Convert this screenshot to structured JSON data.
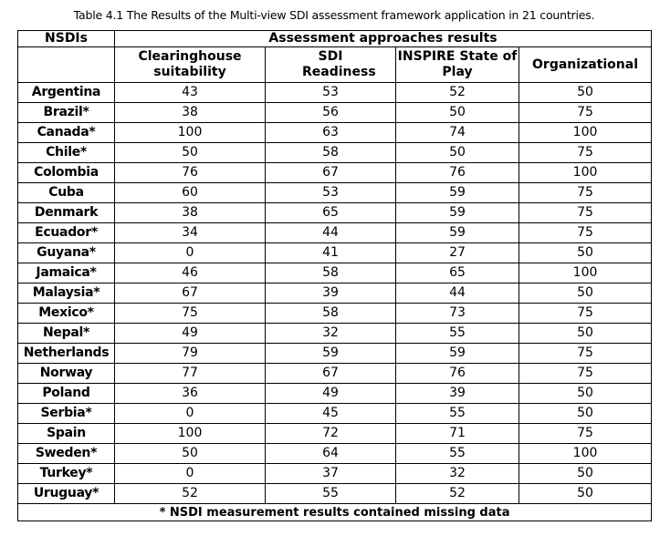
{
  "caption": "Table 4.1 The Results of the Multi-view SDI assessment framework application in 21 countries.",
  "table": {
    "row_header": "NSDIs",
    "group_header": "Assessment approaches results",
    "columns": [
      "Clearinghouse suitability",
      "SDI Readiness",
      "INSPIRE State of Play",
      "Organizational"
    ],
    "rows": [
      {
        "name": "Argentina",
        "values": [
          "43",
          "53",
          "52",
          "50"
        ]
      },
      {
        "name": "Brazil*",
        "values": [
          "38",
          "56",
          "50",
          "75"
        ]
      },
      {
        "name": "Canada*",
        "values": [
          "100",
          "63",
          "74",
          "100"
        ]
      },
      {
        "name": "Chile*",
        "values": [
          "50",
          "58",
          "50",
          "75"
        ]
      },
      {
        "name": "Colombia",
        "values": [
          "76",
          "67",
          "76",
          "100"
        ]
      },
      {
        "name": "Cuba",
        "values": [
          "60",
          "53",
          "59",
          "75"
        ]
      },
      {
        "name": "Denmark",
        "values": [
          "38",
          "65",
          "59",
          "75"
        ]
      },
      {
        "name": "Ecuador*",
        "values": [
          "34",
          "44",
          "59",
          "75"
        ]
      },
      {
        "name": "Guyana*",
        "values": [
          "0",
          "41",
          "27",
          "50"
        ]
      },
      {
        "name": "Jamaica*",
        "values": [
          "46",
          "58",
          "65",
          "100"
        ]
      },
      {
        "name": "Malaysia*",
        "values": [
          "67",
          "39",
          "44",
          "50"
        ]
      },
      {
        "name": "Mexico*",
        "values": [
          "75",
          "58",
          "73",
          "75"
        ]
      },
      {
        "name": "Nepal*",
        "values": [
          "49",
          "32",
          "55",
          "50"
        ]
      },
      {
        "name": "Netherlands",
        "values": [
          "79",
          "59",
          "59",
          "75"
        ]
      },
      {
        "name": "Norway",
        "values": [
          "77",
          "67",
          "76",
          "75"
        ]
      },
      {
        "name": "Poland",
        "values": [
          "36",
          "49",
          "39",
          "50"
        ]
      },
      {
        "name": "Serbia*",
        "values": [
          "0",
          "45",
          "55",
          "50"
        ]
      },
      {
        "name": "Spain",
        "values": [
          "100",
          "72",
          "71",
          "75"
        ]
      },
      {
        "name": "Sweden*",
        "values": [
          "50",
          "64",
          "55",
          "100"
        ]
      },
      {
        "name": "Turkey*",
        "values": [
          "0",
          "37",
          "32",
          "50"
        ]
      },
      {
        "name": "Uruguay*",
        "values": [
          "52",
          "55",
          "52",
          "50"
        ]
      }
    ],
    "footnote": "* NSDI measurement results contained missing data"
  }
}
